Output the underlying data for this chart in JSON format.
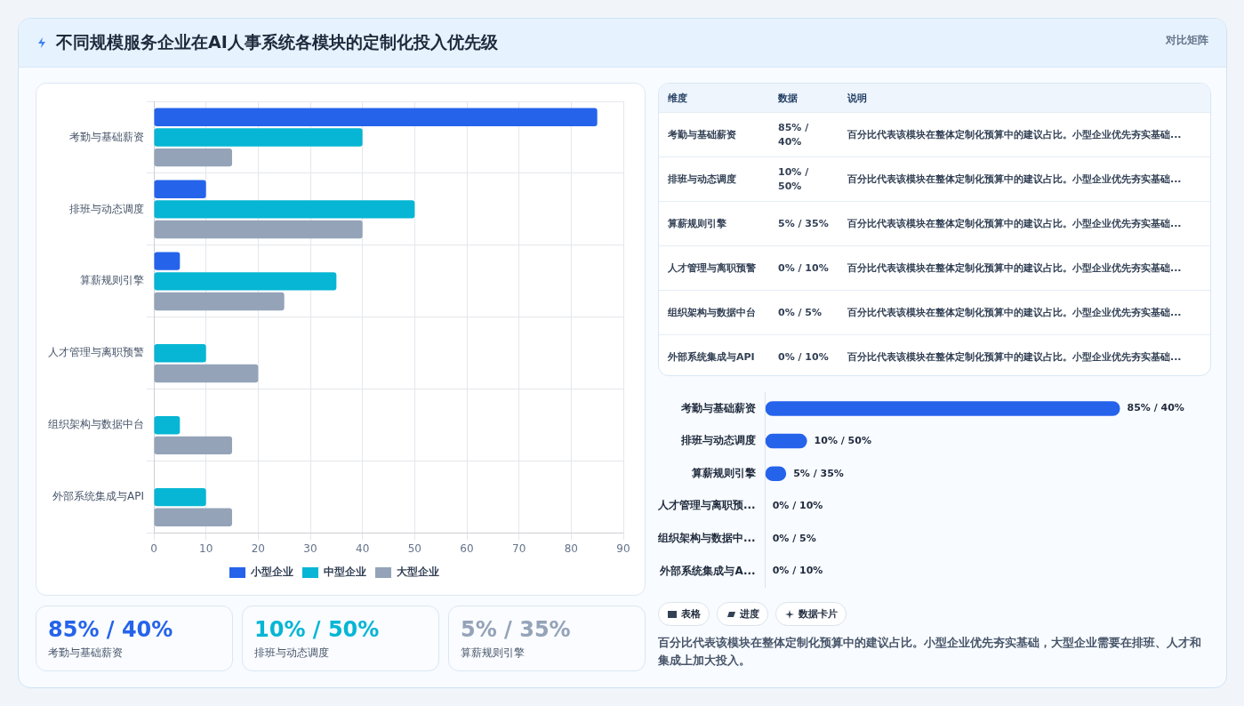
{
  "chart_data": [
    {
      "type": "bar",
      "orientation": "horizontal",
      "title": "不同规模服务企业在AI人事系统各模块的定制化投入优先级",
      "categories": [
        "考勤与基础薪资",
        "排班与动态调度",
        "算薪规则引擎",
        "人才管理与离职预警",
        "组织架构与数据中台",
        "外部系统集成与API"
      ],
      "series": [
        {
          "name": "小型企业",
          "color": "#2563eb",
          "values": [
            85,
            10,
            5,
            0,
            0,
            0
          ]
        },
        {
          "name": "中型企业",
          "color": "#06b6d4",
          "values": [
            40,
            50,
            35,
            10,
            5,
            10
          ]
        },
        {
          "name": "大型企业",
          "color": "#94a3b8",
          "values": [
            15,
            40,
            25,
            20,
            15,
            15
          ]
        }
      ],
      "xlim": [
        0,
        90
      ],
      "xticks": [
        0,
        10,
        20,
        30,
        40,
        50,
        60,
        70,
        80,
        90
      ],
      "grid": true,
      "legend": "bottom"
    },
    {
      "type": "other",
      "title": "对比矩阵",
      "annotations": [
        "维度",
        "数据",
        "说明"
      ],
      "categories": [
        "考勤与基础薪资",
        "排班与动态调度",
        "算薪规则引擎",
        "人才管理与离职预警",
        "组织架构与数据中台",
        "外部系统集成与API"
      ],
      "value_labels": [
        "85% / 40%",
        "10% / 50%",
        "5% / 35%",
        "0% / 10%",
        "0% / 5%",
        "0% / 10%"
      ],
      "cell_labels": [
        "百分比代表该模块在整体定制化预算中的建议占比。小型企业优先夯实基础...",
        "百分比代表该模块在整体定制化预算中的建议占比。小型企业优先夯实基础...",
        "百分比代表该模块在整体定制化预算中的建议占比。小型企业优先夯实基础...",
        "百分比代表该模块在整体定制化预算中的建议占比。小型企业优先夯实基础...",
        "百分比代表该模块在整体定制化预算中的建议占比。小型企业优先夯实基础...",
        "百分比代表该模块在整体定制化预算中的建议占比。小型企业优先夯实基础..."
      ]
    },
    {
      "type": "bar",
      "orientation": "horizontal",
      "tick_labels": "y",
      "categories": [
        "考勤与基础薪资",
        "排班与动态调度",
        "算薪规则引擎",
        "人才管理与离职预...",
        "组织架构与数据中...",
        "外部系统集成与A..."
      ],
      "values": [
        85,
        10,
        5,
        0,
        0,
        0
      ],
      "color": "#2563eb",
      "value_labels": [
        "85% / 40%",
        "10% / 50%",
        "5% / 35%",
        "0% / 10%",
        "0% / 5%",
        "0% / 10%"
      ]
    },
    {
      "type": "other",
      "categories": [
        "考勤与基础薪资",
        "排班与动态调度",
        "算薪规则引擎"
      ],
      "value_labels": [
        "85% / 40%",
        "10% / 50%",
        "5% / 35%"
      ]
    },
    {
      "type": "other",
      "annotations": [
        "表格",
        "进度",
        "数据卡片",
        "百分比代表该模块在整体定制化预算中的建议占比。小型企业优先夯实基础，大型企业需要在排班、人才和集成上加大投入。"
      ]
    }
  ]
}
